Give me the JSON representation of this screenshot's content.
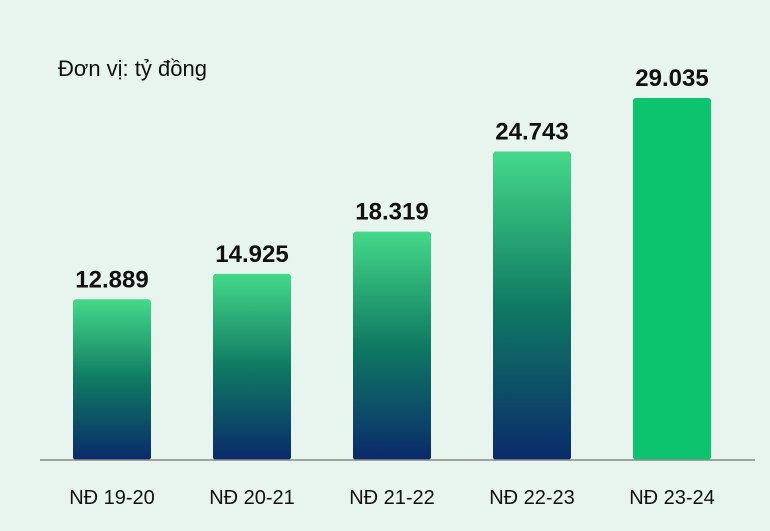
{
  "chart_data": {
    "type": "bar",
    "unit_label": "Đơn vị: tỷ đồng",
    "categories": [
      "NĐ 19-20",
      "NĐ 20-21",
      "NĐ 21-22",
      "NĐ 22-23",
      "NĐ 23-24"
    ],
    "values": [
      12889,
      14925,
      18319,
      24743,
      29035
    ],
    "value_labels": [
      "12.889",
      "14.925",
      "18.319",
      "24.743",
      "29.035"
    ],
    "ylim": [
      0,
      31000
    ],
    "grid": false,
    "colors": {
      "gradient_top": "#44d98a",
      "gradient_mid": "#0f7a62",
      "gradient_bottom": "#0a2a6b",
      "highlight": "#0cc46e",
      "axis": "#8a8a8a",
      "text": "#111111"
    }
  }
}
